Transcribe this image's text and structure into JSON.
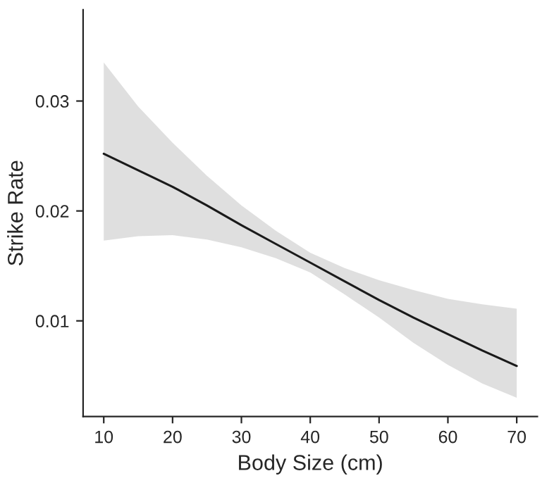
{
  "chart_data": {
    "type": "line",
    "xlabel": "Body Size (cm)",
    "ylabel": "Strike Rate",
    "x": [
      10,
      15,
      20,
      25,
      30,
      35,
      40,
      45,
      50,
      55,
      60,
      65,
      70
    ],
    "series": [
      {
        "color": "#1a1a1a",
        "values": [
          0.0252,
          0.0237,
          0.0222,
          0.0205,
          0.0187,
          0.017,
          0.0153,
          0.0136,
          0.0119,
          0.0103,
          0.0088,
          0.0073,
          0.0059
        ],
        "upper": [
          0.0335,
          0.0295,
          0.0262,
          0.0232,
          0.0205,
          0.0182,
          0.0162,
          0.0148,
          0.0137,
          0.0128,
          0.012,
          0.0115,
          0.0111
        ],
        "lower": [
          0.0173,
          0.0177,
          0.0178,
          0.0174,
          0.0167,
          0.0157,
          0.0144,
          0.0124,
          0.0103,
          0.008,
          0.006,
          0.0043,
          0.003
        ]
      }
    ],
    "xlim": [
      7,
      73
    ],
    "xticks": [
      10,
      20,
      30,
      40,
      50,
      60,
      70
    ],
    "ylim": [
      0.0013,
      0.0383
    ],
    "yticks": [
      {
        "value": 0.01,
        "label": "0.01"
      },
      {
        "value": 0.02,
        "label": "0.02"
      },
      {
        "value": 0.03,
        "label": "0.03"
      }
    ],
    "grid": false,
    "line_style": "solid",
    "marker": "none"
  }
}
